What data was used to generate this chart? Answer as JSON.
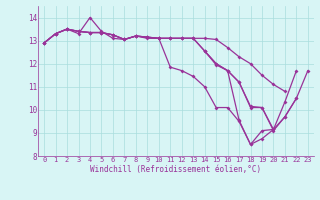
{
  "x": [
    0,
    1,
    2,
    3,
    4,
    5,
    6,
    7,
    8,
    9,
    10,
    11,
    12,
    13,
    14,
    15,
    16,
    17,
    18,
    19,
    20,
    21,
    22,
    23
  ],
  "line1": [
    12.9,
    13.3,
    13.5,
    13.3,
    14.0,
    13.4,
    13.1,
    13.05,
    13.2,
    13.1,
    13.1,
    11.85,
    11.7,
    11.45,
    11.0,
    10.1,
    10.1,
    9.5,
    8.5,
    8.75,
    9.15,
    null,
    null,
    null
  ],
  "line2": [
    12.9,
    13.3,
    13.5,
    13.4,
    13.35,
    13.35,
    13.25,
    13.05,
    13.2,
    13.15,
    13.1,
    13.1,
    13.1,
    13.1,
    13.1,
    13.05,
    12.7,
    12.3,
    12.0,
    11.5,
    11.1,
    10.8,
    null,
    null
  ],
  "line3": [
    12.9,
    13.3,
    13.5,
    13.4,
    13.35,
    13.35,
    13.25,
    13.05,
    13.2,
    13.15,
    13.1,
    13.1,
    13.1,
    13.1,
    12.55,
    12.0,
    11.7,
    11.2,
    10.15,
    10.1,
    9.15,
    9.7,
    10.5,
    null
  ],
  "line4": [
    12.9,
    13.3,
    13.5,
    13.4,
    13.35,
    13.35,
    13.25,
    13.05,
    13.2,
    13.15,
    13.1,
    13.1,
    13.1,
    13.1,
    12.55,
    11.95,
    11.7,
    9.55,
    8.5,
    9.1,
    9.15,
    10.35,
    11.7,
    null
  ],
  "line5": [
    null,
    null,
    null,
    null,
    null,
    null,
    null,
    null,
    null,
    null,
    null,
    null,
    null,
    null,
    12.55,
    12.0,
    11.7,
    11.2,
    10.1,
    10.1,
    9.1,
    9.7,
    10.5,
    11.7
  ],
  "color": "#993399",
  "bg_color": "#d8f5f5",
  "grid_color": "#aadddd",
  "xlabel": "Windchill (Refroidissement éolien,°C)",
  "ylim": [
    8,
    14.5
  ],
  "xlim": [
    -0.5,
    23.5
  ],
  "yticks": [
    8,
    9,
    10,
    11,
    12,
    13,
    14
  ],
  "xticks": [
    0,
    1,
    2,
    3,
    4,
    5,
    6,
    7,
    8,
    9,
    10,
    11,
    12,
    13,
    14,
    15,
    16,
    17,
    18,
    19,
    20,
    21,
    22,
    23
  ]
}
